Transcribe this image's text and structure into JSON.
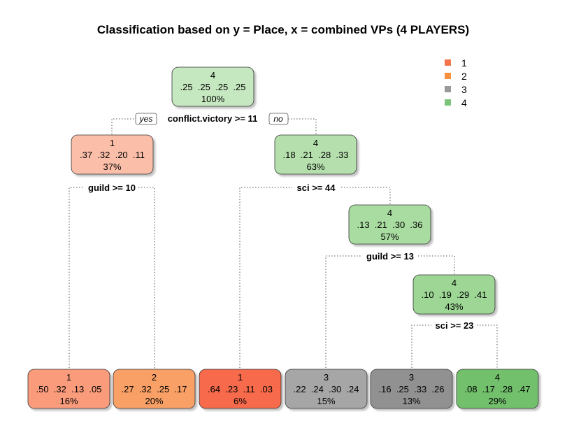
{
  "title": "Classification based on y = Place, x = combined VPs (4 PLAYERS)",
  "legend": {
    "placement": "top-right",
    "items": [
      {
        "label": "1",
        "color": "#f4754b"
      },
      {
        "label": "2",
        "color": "#f5913f"
      },
      {
        "label": "3",
        "color": "#999999"
      },
      {
        "label": "4",
        "color": "#7cc47a"
      }
    ]
  },
  "branch_labels": {
    "yes": "yes",
    "no": "no"
  },
  "nodes": [
    {
      "id": "root",
      "cls": "4",
      "probs": ".25  .25  .25  .25",
      "pct": "100%",
      "fill": "#c6e8c0"
    },
    {
      "id": "n_left",
      "cls": "1",
      "probs": ".37  .32  .20  .11",
      "pct": "37%",
      "fill": "#fbbfa9"
    },
    {
      "id": "n_right",
      "cls": "4",
      "probs": ".18  .21  .28  .33",
      "pct": "63%",
      "fill": "#b5e0ad"
    },
    {
      "id": "n_rr",
      "cls": "4",
      "probs": ".13  .21  .30  .36",
      "pct": "57%",
      "fill": "#a9dca1"
    },
    {
      "id": "n_rrr",
      "cls": "4",
      "probs": ".10  .19  .29  .41",
      "pct": "43%",
      "fill": "#9dd695"
    },
    {
      "id": "leaf1",
      "cls": "1",
      "probs": ".50  .32  .13  .05",
      "pct": "16%",
      "fill": "#fa9b7c"
    },
    {
      "id": "leaf2",
      "cls": "2",
      "probs": ".27  .32  .25  .17",
      "pct": "20%",
      "fill": "#f9a066"
    },
    {
      "id": "leaf3",
      "cls": "1",
      "probs": ".64  .23  .11  .03",
      "pct": "6%",
      "fill": "#f76a4c"
    },
    {
      "id": "leaf4",
      "cls": "3",
      "probs": ".22  .24  .30  .24",
      "pct": "15%",
      "fill": "#a6a6a6"
    },
    {
      "id": "leaf5",
      "cls": "3",
      "probs": ".16  .25  .33  .26",
      "pct": "13%",
      "fill": "#919191"
    },
    {
      "id": "leaf6",
      "cls": "4",
      "probs": ".08  .17  .28  .47",
      "pct": "29%",
      "fill": "#72c06c"
    }
  ],
  "splits": [
    {
      "id": "split_root",
      "label": "conflict.victory >= 11"
    },
    {
      "id": "split_left",
      "label": "guild >= 10"
    },
    {
      "id": "split_right",
      "label": "sci >= 44"
    },
    {
      "id": "split_rr",
      "label": "guild >= 13"
    },
    {
      "id": "split_rrr",
      "label": "sci >= 23"
    }
  ]
}
